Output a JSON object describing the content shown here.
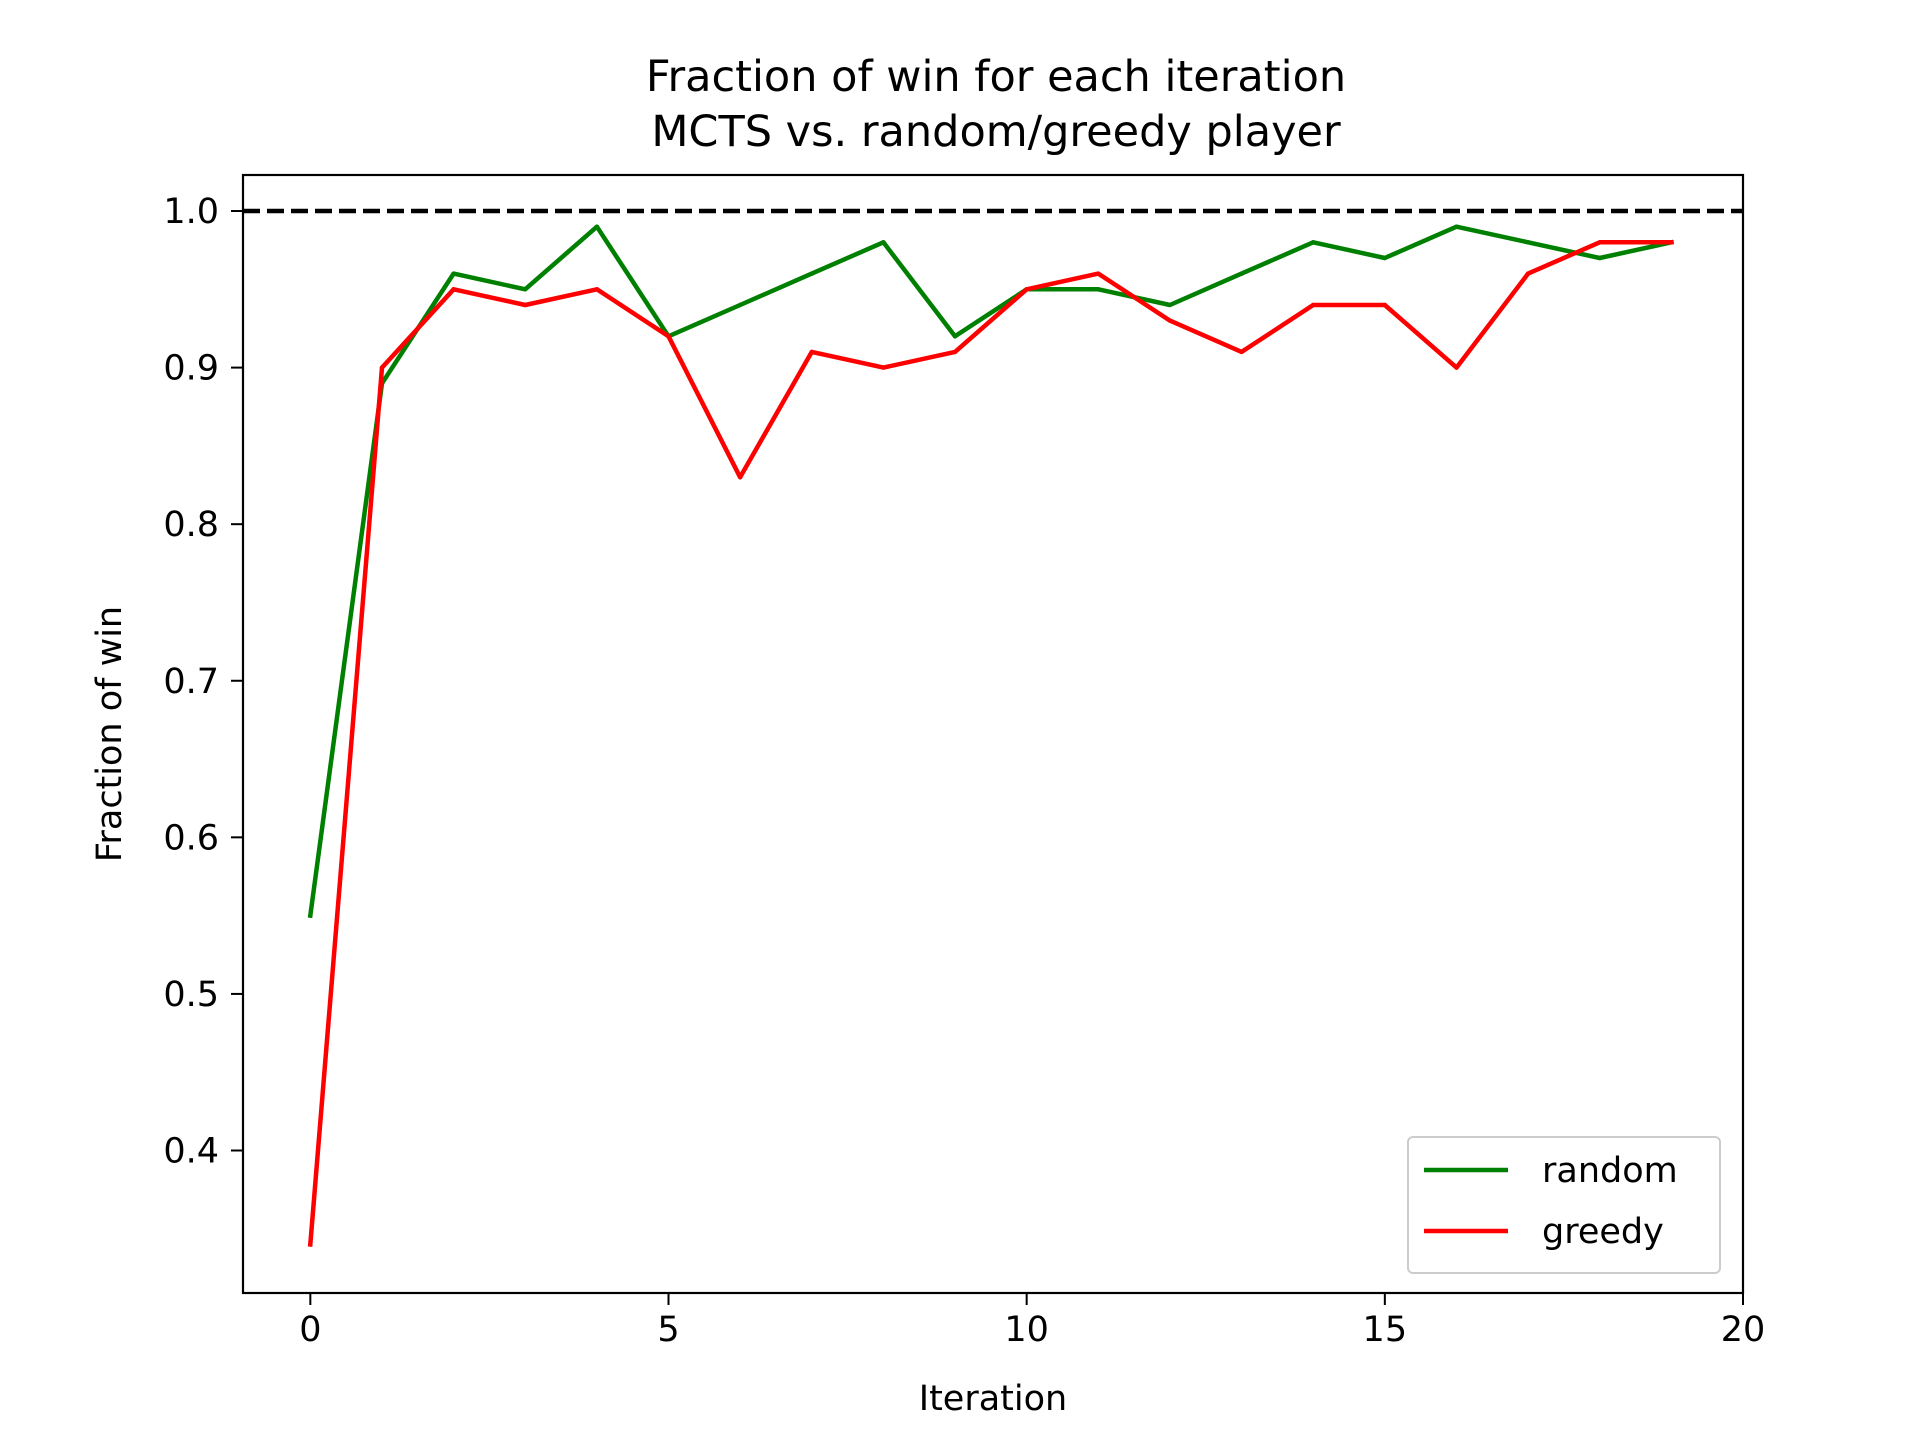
{
  "chart_data": {
    "type": "line",
    "title": "Fraction of win for each iteration",
    "subtitle": "MCTS vs. random/greedy player",
    "xlabel": "Iteration",
    "ylabel": "Fraction of win",
    "xlim": [
      -0.94,
      20
    ],
    "ylim": [
      0.309,
      1.023
    ],
    "x_ticks": [
      0,
      5,
      10,
      15,
      20
    ],
    "x_tick_labels": [
      "0",
      "5",
      "10",
      "15",
      "20"
    ],
    "y_ticks": [
      0.4,
      0.5,
      0.6,
      0.7,
      0.8,
      0.9,
      1.0
    ],
    "y_tick_labels": [
      "0.4",
      "0.5",
      "0.6",
      "0.7",
      "0.8",
      "0.9",
      "1.0"
    ],
    "grid": false,
    "legend_position": "lower-right",
    "reference_line": {
      "y": 1.0,
      "style": "dashed",
      "color": "#000000"
    },
    "x": [
      0,
      1,
      2,
      3,
      4,
      5,
      6,
      7,
      8,
      9,
      10,
      11,
      12,
      13,
      14,
      15,
      16,
      17,
      18,
      19
    ],
    "series": [
      {
        "name": "random",
        "color": "#008000",
        "values": [
          0.55,
          0.89,
          0.96,
          0.95,
          0.99,
          0.92,
          0.94,
          0.96,
          0.98,
          0.92,
          0.95,
          0.95,
          0.94,
          0.96,
          0.98,
          0.97,
          0.99,
          0.98,
          0.97,
          0.98
        ]
      },
      {
        "name": "greedy",
        "color": "#ff0000",
        "values": [
          0.34,
          0.9,
          0.95,
          0.94,
          0.95,
          0.92,
          0.83,
          0.91,
          0.9,
          0.91,
          0.95,
          0.96,
          0.93,
          0.91,
          0.94,
          0.94,
          0.9,
          0.96,
          0.98,
          0.98
        ]
      }
    ]
  }
}
